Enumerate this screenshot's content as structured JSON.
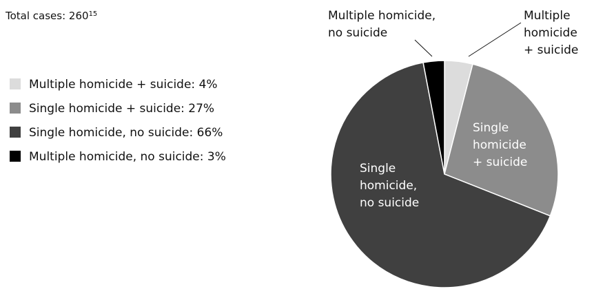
{
  "chart_data": {
    "type": "pie",
    "title": "Total cases: 260",
    "footnote_marker": "15",
    "legend": [
      "Multiple homicide + suicide: 4%",
      "Single homicide + suicide: 27%",
      "Single homicide, no suicide: 66%",
      "Multiple homicide, no suicide: 3%"
    ],
    "values": [
      4,
      27,
      66,
      3
    ],
    "colors": [
      "#dcdcdc",
      "#8c8c8c",
      "#404040",
      "#000000"
    ],
    "slice_labels": [
      [
        "Multiple",
        "homicide",
        "+ suicide"
      ],
      [
        "Single",
        "homicide",
        "+ suicide"
      ],
      [
        "Single",
        "homicide,",
        "no suicide"
      ],
      [
        "Multiple homicide,",
        "no suicide"
      ]
    ]
  }
}
